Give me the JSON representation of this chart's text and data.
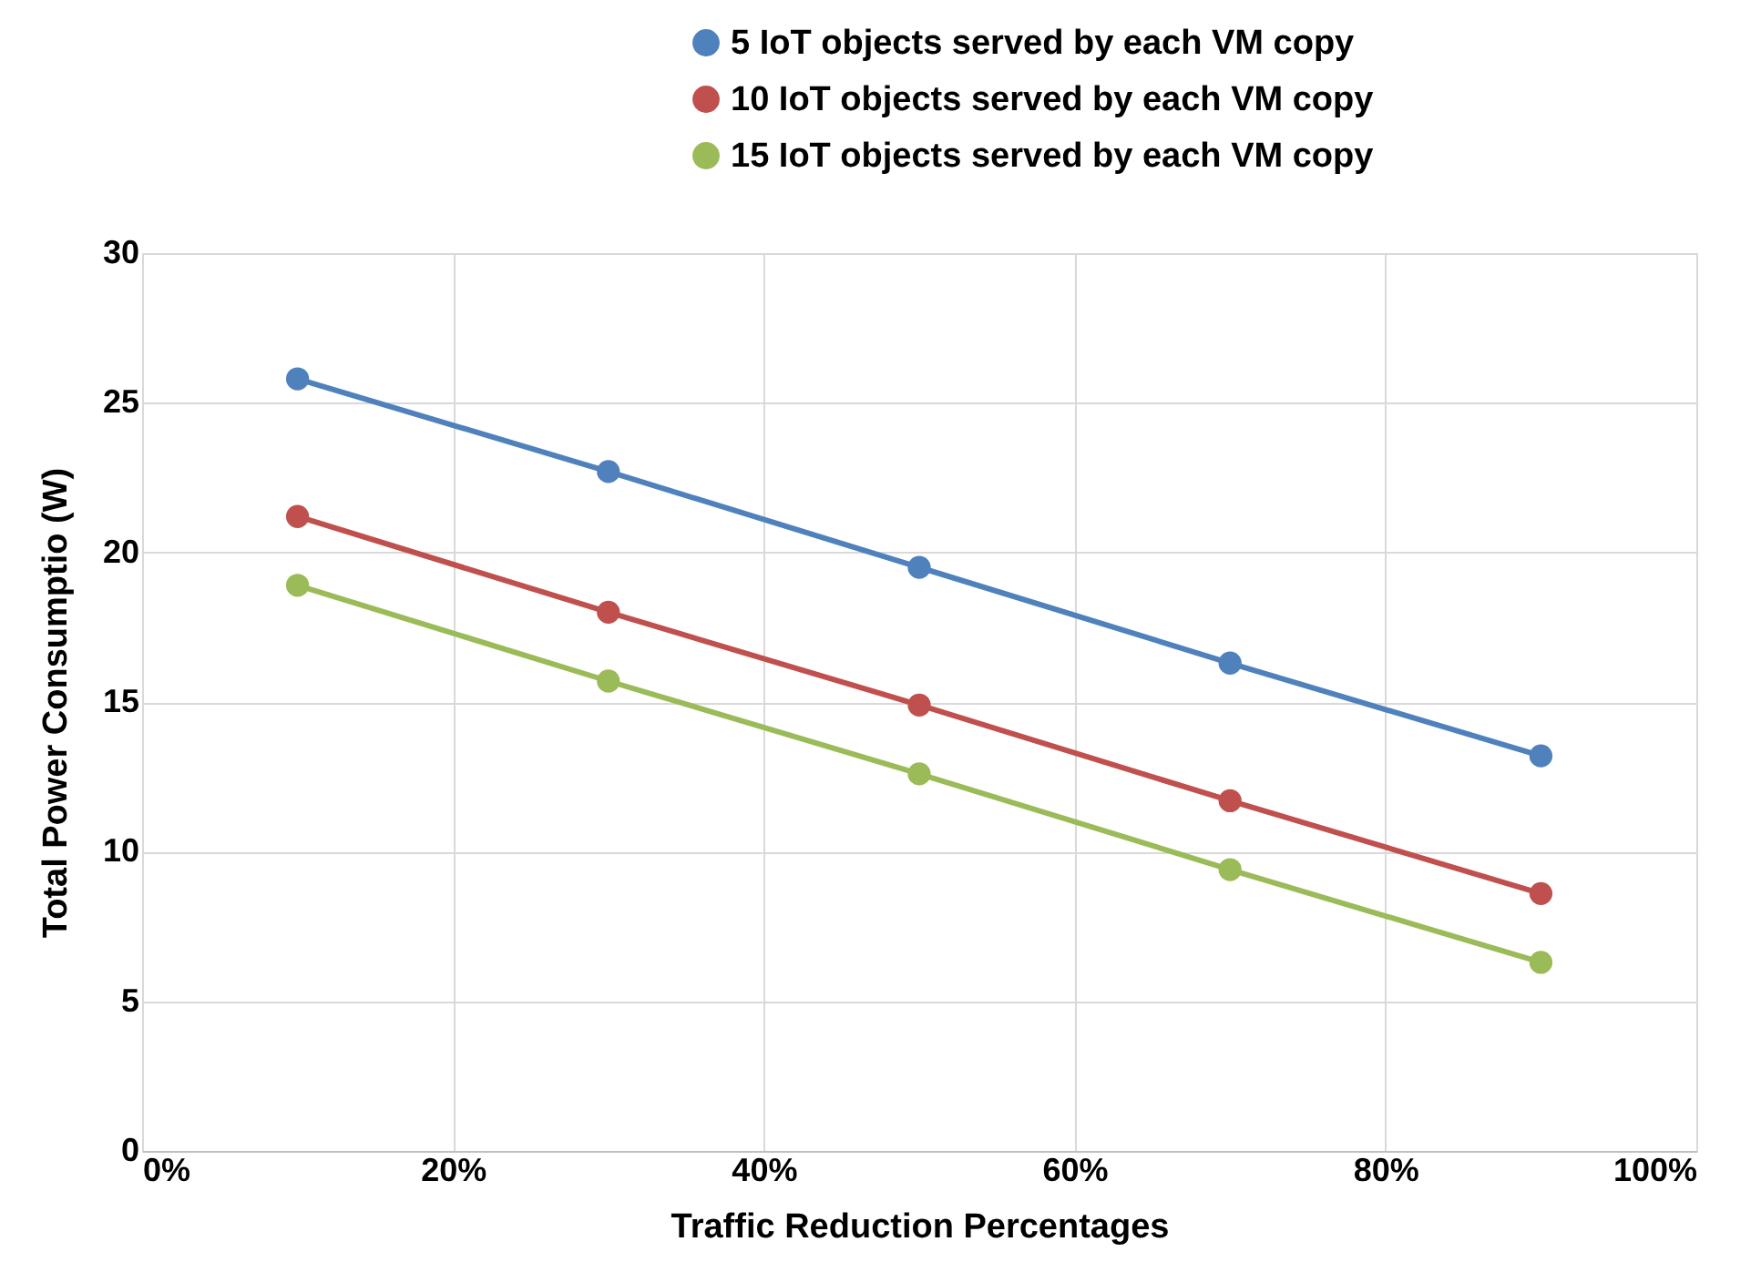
{
  "chart_data": {
    "type": "line",
    "xlabel": "Traffic Reduction Percentages",
    "ylabel": "Total Power Consumptio  (W)",
    "x": [
      10,
      30,
      50,
      70,
      90
    ],
    "series": [
      {
        "name": "5 IoT objects served by each VM copy",
        "color": "#4f81bd",
        "values": [
          25.8,
          22.7,
          19.5,
          16.3,
          13.2
        ]
      },
      {
        "name": "10  IoT objects served by each VM copy",
        "color": "#c0504d",
        "values": [
          21.2,
          18.0,
          14.9,
          11.7,
          8.6
        ]
      },
      {
        "name": "15  IoT objects served by each VM copy",
        "color": "#9bbb59",
        "values": [
          18.9,
          15.7,
          12.6,
          9.4,
          6.3
        ]
      }
    ],
    "xlim": [
      0,
      100
    ],
    "xticks": [
      {
        "value": 0,
        "label": "0%"
      },
      {
        "value": 20,
        "label": "20%"
      },
      {
        "value": 40,
        "label": "40%"
      },
      {
        "value": 60,
        "label": "60%"
      },
      {
        "value": 80,
        "label": "80%"
      },
      {
        "value": 100,
        "label": "100%"
      }
    ],
    "ylim": [
      0,
      30
    ],
    "yticks": [
      0,
      5,
      10,
      15,
      20,
      25,
      30
    ],
    "grid": true,
    "legend": "top right",
    "marker": "circle",
    "line_style": "solid"
  }
}
